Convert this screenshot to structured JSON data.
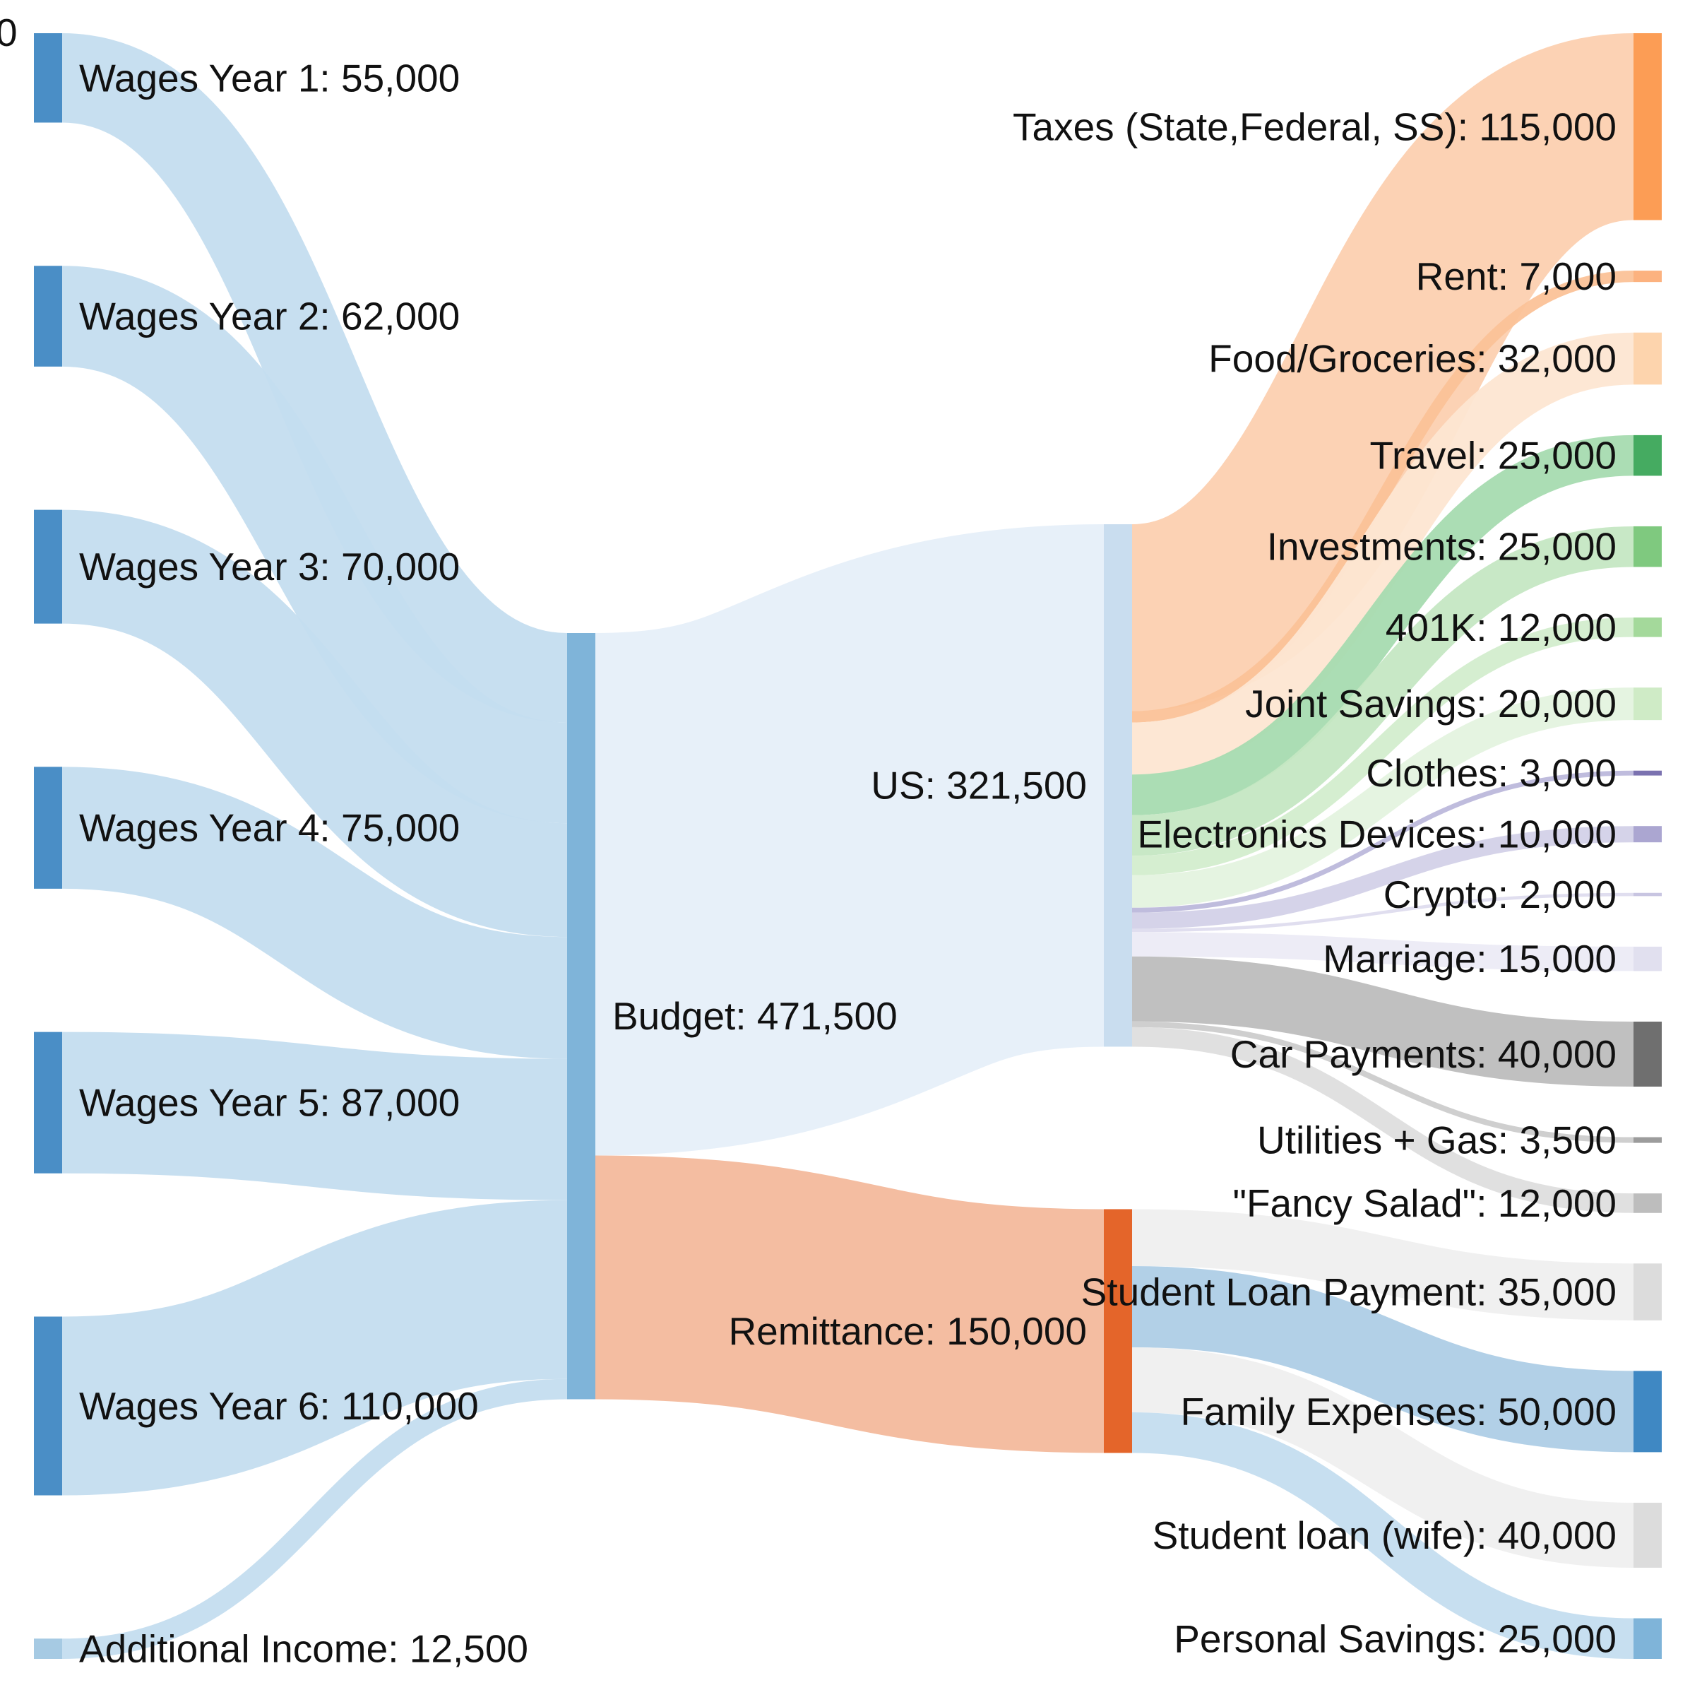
{
  "corner_label": "0",
  "chart_data": {
    "type": "sankey",
    "unit_note": "",
    "nodes": [
      {
        "id": "w1",
        "label": "Wages Year 1: 55,000",
        "name": "Wages Year 1",
        "value": 55000,
        "column": 0,
        "color": "#4a8ec6"
      },
      {
        "id": "w2",
        "label": "Wages Year 2: 62,000",
        "name": "Wages Year 2",
        "value": 62000,
        "column": 0,
        "color": "#4a8ec6"
      },
      {
        "id": "w3",
        "label": "Wages Year 3: 70,000",
        "name": "Wages Year 3",
        "value": 70000,
        "column": 0,
        "color": "#4a8ec6"
      },
      {
        "id": "w4",
        "label": "Wages Year 4: 75,000",
        "name": "Wages Year 4",
        "value": 75000,
        "column": 0,
        "color": "#4a8ec6"
      },
      {
        "id": "w5",
        "label": "Wages Year 5: 87,000",
        "name": "Wages Year 5",
        "value": 87000,
        "column": 0,
        "color": "#4a8ec6"
      },
      {
        "id": "w6",
        "label": "Wages Year 6: 110,000",
        "name": "Wages Year 6",
        "value": 110000,
        "column": 0,
        "color": "#4a8ec6"
      },
      {
        "id": "ai",
        "label": "Additional Income: 12,500",
        "name": "Additional Income",
        "value": 12500,
        "column": 0,
        "color": "#a6cae3"
      },
      {
        "id": "budget",
        "label": "Budget: 471,500",
        "name": "Budget",
        "value": 471500,
        "column": 1,
        "color": "#7fb4d9"
      },
      {
        "id": "us",
        "label": "US: 321,500",
        "name": "US",
        "value": 321500,
        "column": 2,
        "color": "#c9ddef"
      },
      {
        "id": "remit",
        "label": "Remittance: 150,000",
        "name": "Remittance",
        "value": 150000,
        "column": 2,
        "color": "#e4652a"
      },
      {
        "id": "taxes",
        "label": "Taxes (State,Federal, SS): 115,000",
        "name": "Taxes (State,Federal, SS)",
        "value": 115000,
        "column": 3,
        "color": "#fc9d55"
      },
      {
        "id": "rent",
        "label": "Rent: 7,000",
        "name": "Rent",
        "value": 7000,
        "column": 3,
        "color": "#fcb27f"
      },
      {
        "id": "food",
        "label": "Food/Groceries: 32,000",
        "name": "Food/Groceries",
        "value": 32000,
        "column": 3,
        "color": "#fdd4ad"
      },
      {
        "id": "travel",
        "label": "Travel: 25,000",
        "name": "Travel",
        "value": 25000,
        "column": 3,
        "color": "#45ab61"
      },
      {
        "id": "invest",
        "label": "Investments: 25,000",
        "name": "Investments",
        "value": 25000,
        "column": 3,
        "color": "#7fc97f"
      },
      {
        "id": "k401",
        "label": "401K: 12,000",
        "name": "401K",
        "value": 12000,
        "column": 3,
        "color": "#a4d99b"
      },
      {
        "id": "joint",
        "label": "Joint Savings: 20,000",
        "name": "Joint Savings",
        "value": 20000,
        "column": 3,
        "color": "#cfebc6"
      },
      {
        "id": "clothes",
        "label": "Clothes: 3,000",
        "name": "Clothes",
        "value": 3000,
        "column": 3,
        "color": "#7b72b0"
      },
      {
        "id": "elec",
        "label": "Electronics Devices: 10,000",
        "name": "Electronics Devices",
        "value": 10000,
        "column": 3,
        "color": "#aba6d1"
      },
      {
        "id": "crypto",
        "label": "Crypto: 2,000",
        "name": "Crypto",
        "value": 2000,
        "column": 3,
        "color": "#c8c5e1"
      },
      {
        "id": "marriage",
        "label": "Marriage: 15,000",
        "name": "Marriage",
        "value": 15000,
        "column": 3,
        "color": "#e1e0ef"
      },
      {
        "id": "car",
        "label": "Car Payments: 40,000",
        "name": "Car Payments",
        "value": 40000,
        "column": 3,
        "color": "#6f6f6f"
      },
      {
        "id": "util",
        "label": "Utilities + Gas: 3,500",
        "name": "Utilities + Gas",
        "value": 3500,
        "column": 3,
        "color": "#9c9c9c"
      },
      {
        "id": "salad",
        "label": "\"Fancy Salad\": 12,000",
        "name": "\"Fancy Salad\"",
        "value": 12000,
        "column": 3,
        "color": "#bdbdbd"
      },
      {
        "id": "sloan",
        "label": "Student Loan Payment: 35,000",
        "name": "Student Loan Payment",
        "value": 35000,
        "column": 3,
        "color": "#dcdcdc"
      },
      {
        "id": "family",
        "label": "Family Expenses: 50,000",
        "name": "Family Expenses",
        "value": 50000,
        "column": 3,
        "color": "#3f88c3"
      },
      {
        "id": "wife",
        "label": "Student loan (wife): 40,000",
        "name": "Student loan (wife)",
        "value": 40000,
        "column": 3,
        "color": "#dcdcdc"
      },
      {
        "id": "psave",
        "label": "Personal Savings: 25,000",
        "name": "Personal Savings",
        "value": 25000,
        "column": 3,
        "color": "#7fb4d9"
      }
    ],
    "links": [
      {
        "source": "w1",
        "target": "budget",
        "value": 55000,
        "color": "#c4ddef"
      },
      {
        "source": "w2",
        "target": "budget",
        "value": 62000,
        "color": "#c4ddef"
      },
      {
        "source": "w3",
        "target": "budget",
        "value": 70000,
        "color": "#c4ddef"
      },
      {
        "source": "w4",
        "target": "budget",
        "value": 75000,
        "color": "#c4ddef"
      },
      {
        "source": "w5",
        "target": "budget",
        "value": 87000,
        "color": "#c4ddef"
      },
      {
        "source": "w6",
        "target": "budget",
        "value": 110000,
        "color": "#c4ddef"
      },
      {
        "source": "ai",
        "target": "budget",
        "value": 12500,
        "color": "#c4ddef"
      },
      {
        "source": "budget",
        "target": "us",
        "value": 321500,
        "color": "#e6eff9"
      },
      {
        "source": "budget",
        "target": "remit",
        "value": 150000,
        "color": "#f3b99c"
      },
      {
        "source": "us",
        "target": "taxes",
        "value": 115000,
        "color": "#fcd0b0"
      },
      {
        "source": "us",
        "target": "rent",
        "value": 7000,
        "color": "#fbc298"
      },
      {
        "source": "us",
        "target": "food",
        "value": 32000,
        "color": "#fde6d2"
      },
      {
        "source": "us",
        "target": "travel",
        "value": 25000,
        "color": "#a7dbb0"
      },
      {
        "source": "us",
        "target": "invest",
        "value": 25000,
        "color": "#c5e7c3"
      },
      {
        "source": "us",
        "target": "k401",
        "value": 12000,
        "color": "#d3edcd"
      },
      {
        "source": "us",
        "target": "joint",
        "value": 20000,
        "color": "#e4f3df"
      },
      {
        "source": "us",
        "target": "clothes",
        "value": 3000,
        "color": "#bcb8db"
      },
      {
        "source": "us",
        "target": "elec",
        "value": 10000,
        "color": "#d3d1e8"
      },
      {
        "source": "us",
        "target": "crypto",
        "value": 2000,
        "color": "#dedcee"
      },
      {
        "source": "us",
        "target": "marriage",
        "value": 15000,
        "color": "#ecebf5"
      },
      {
        "source": "us",
        "target": "car",
        "value": 40000,
        "color": "#bdbdbd"
      },
      {
        "source": "us",
        "target": "util",
        "value": 3500,
        "color": "#cccccc"
      },
      {
        "source": "us",
        "target": "salad",
        "value": 12000,
        "color": "#dedede"
      },
      {
        "source": "remit",
        "target": "sloan",
        "value": 35000,
        "color": "#efefef"
      },
      {
        "source": "remit",
        "target": "family",
        "value": 50000,
        "color": "#aecde6"
      },
      {
        "source": "remit",
        "target": "wife",
        "value": 40000,
        "color": "#efefef"
      },
      {
        "source": "remit",
        "target": "psave",
        "value": 25000,
        "color": "#c4ddef"
      }
    ]
  }
}
